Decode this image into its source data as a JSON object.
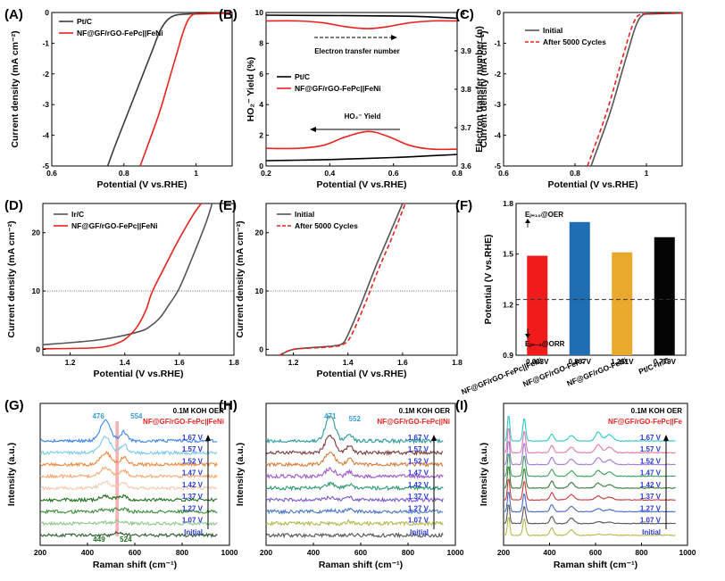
{
  "chart_data": [
    {
      "panel": "(A)",
      "type": "line",
      "xlabel": "Potential (V vs.RHE)",
      "ylabel": "Current density (mA cm⁻²)",
      "xlim": [
        0.6,
        1.1
      ],
      "ylim": [
        -5,
        0
      ],
      "xticks": [
        0.6,
        0.8,
        1.0
      ],
      "yticks": [
        -5,
        -4,
        -3,
        -2,
        -1,
        0
      ],
      "legend_pos": "top-left",
      "series": [
        {
          "name": "Pt/C",
          "color": "#3c3c3c",
          "x": [
            0.755,
            0.78,
            0.82,
            0.86,
            0.88,
            0.9,
            0.92,
            0.94,
            0.96,
            1.0,
            1.1
          ],
          "y": [
            -5.0,
            -4.2,
            -3.0,
            -1.8,
            -1.2,
            -0.6,
            -0.25,
            -0.1,
            -0.06,
            -0.04,
            0.0
          ]
        },
        {
          "name": "NF@GF/rGO-FePc||FeNi",
          "color": "#e8231e",
          "x": [
            0.845,
            0.87,
            0.9,
            0.93,
            0.95,
            0.96,
            0.97,
            0.98,
            0.99,
            1.0,
            1.1
          ],
          "y": [
            -5.0,
            -4.2,
            -3.2,
            -2.0,
            -1.2,
            -0.8,
            -0.45,
            -0.2,
            -0.08,
            -0.05,
            -0.02
          ]
        }
      ]
    },
    {
      "panel": "(B)",
      "type": "line",
      "xlabel": "Potential (V vs.RHE)",
      "ylabel": "HO₂⁻ Yield (%)",
      "y2label": "Electron transfer number (n)",
      "xlim": [
        0.2,
        0.8
      ],
      "ylim": [
        0,
        10
      ],
      "y2lim": [
        3.6,
        4.0
      ],
      "xticks": [
        0.2,
        0.4,
        0.6,
        0.8
      ],
      "yticks": [
        0,
        2,
        4,
        6,
        8,
        10
      ],
      "y2ticks": [
        3.6,
        3.7,
        3.8,
        3.9,
        4.0
      ],
      "legend_pos": "middle-left",
      "annotations": [
        "Electron transfer number",
        "HO₂⁻ Yield"
      ],
      "series": [
        {
          "name": "Pt/C",
          "axis": "left",
          "color": "#000000",
          "x": [
            0.2,
            0.3,
            0.4,
            0.5,
            0.6,
            0.7,
            0.8
          ],
          "y": [
            0.35,
            0.38,
            0.42,
            0.48,
            0.55,
            0.65,
            0.75
          ]
        },
        {
          "name": "NF@GF/rGO-FePc||FeNi",
          "axis": "left",
          "color": "#e8231e",
          "x": [
            0.2,
            0.3,
            0.38,
            0.45,
            0.52,
            0.58,
            0.65,
            0.72,
            0.8
          ],
          "y": [
            1.15,
            1.15,
            1.35,
            1.9,
            2.25,
            1.95,
            1.35,
            1.1,
            1.1
          ]
        },
        {
          "name": "Pt/C n",
          "axis": "right",
          "color": "#000000",
          "x": [
            0.2,
            0.4,
            0.6,
            0.7,
            0.8
          ],
          "y": [
            3.993,
            3.992,
            3.991,
            3.989,
            3.985
          ]
        },
        {
          "name": "NF@GF/rGO-FePc||FeNi n",
          "axis": "right",
          "color": "#e8231e",
          "x": [
            0.2,
            0.3,
            0.38,
            0.45,
            0.52,
            0.58,
            0.65,
            0.72,
            0.8
          ],
          "y": [
            3.978,
            3.978,
            3.973,
            3.963,
            3.958,
            3.963,
            3.973,
            3.978,
            3.978
          ]
        }
      ]
    },
    {
      "panel": "(C)",
      "type": "line",
      "xlabel": "Potential (V vs.RHE)",
      "ylabel": "Current density (mA cm⁻²)",
      "xlim": [
        0.6,
        1.1
      ],
      "ylim": [
        -5,
        0
      ],
      "xticks": [
        0.6,
        0.8,
        1.0
      ],
      "yticks": [
        -5,
        -4,
        -3,
        -2,
        -1,
        0
      ],
      "legend_pos": "top-right",
      "series": [
        {
          "name": "Initial",
          "color": "#555555",
          "dash": false,
          "x": [
            0.845,
            0.87,
            0.9,
            0.93,
            0.95,
            0.96,
            0.97,
            0.98,
            0.99,
            1.0,
            1.1
          ],
          "y": [
            -5.0,
            -4.2,
            -3.2,
            -2.0,
            -1.2,
            -0.8,
            -0.45,
            -0.2,
            -0.08,
            -0.05,
            -0.02
          ]
        },
        {
          "name": "After 5000 Cycles",
          "color": "#e8231e",
          "dash": true,
          "x": [
            0.835,
            0.86,
            0.89,
            0.92,
            0.94,
            0.95,
            0.96,
            0.97,
            0.98,
            1.0,
            1.1
          ],
          "y": [
            -5.0,
            -4.2,
            -3.2,
            -2.0,
            -1.2,
            -0.8,
            -0.45,
            -0.2,
            -0.08,
            -0.05,
            -0.02
          ]
        }
      ]
    },
    {
      "panel": "(D)",
      "type": "line",
      "xlabel": "Potential (V vs.RHE)",
      "ylabel": "Current density (mA cm⁻²)",
      "xlim": [
        1.1,
        1.8
      ],
      "ylim": [
        -1,
        25
      ],
      "xticks": [
        1.2,
        1.4,
        1.6,
        1.8
      ],
      "yticks": [
        0,
        10,
        20
      ],
      "refline": 10,
      "legend_pos": "top-left",
      "series": [
        {
          "name": "Ir/C",
          "color": "#555555",
          "x": [
            1.1,
            1.3,
            1.45,
            1.5,
            1.53,
            1.56,
            1.6,
            1.65,
            1.7,
            1.72
          ],
          "y": [
            0.8,
            1.6,
            3.0,
            4.2,
            5.5,
            7.5,
            10.5,
            16.0,
            22.0,
            25.0
          ]
        },
        {
          "name": "NF@GF/rGO-FePc||FeNi",
          "color": "#e8231e",
          "x": [
            1.1,
            1.3,
            1.38,
            1.42,
            1.45,
            1.48,
            1.5,
            1.55,
            1.6,
            1.65,
            1.68
          ],
          "y": [
            0.1,
            0.3,
            1.2,
            2.5,
            4.2,
            7.0,
            9.8,
            14.5,
            19.0,
            23.0,
            25.0
          ]
        }
      ]
    },
    {
      "panel": "(E)",
      "type": "line",
      "xlabel": "Potential (V vs.RHE)",
      "ylabel": "Current density (mA cm⁻²)",
      "xlim": [
        1.1,
        1.8
      ],
      "ylim": [
        -1,
        25
      ],
      "xticks": [
        1.2,
        1.4,
        1.6,
        1.8
      ],
      "yticks": [
        0,
        10,
        20
      ],
      "refline": 10,
      "legend_pos": "top-left",
      "series": [
        {
          "name": "Initial",
          "color": "#555555",
          "dash": false,
          "x": [
            1.15,
            1.2,
            1.3,
            1.35,
            1.38,
            1.4,
            1.45,
            1.5,
            1.55,
            1.6
          ],
          "y": [
            -1.0,
            0.0,
            0.4,
            0.6,
            1.0,
            2.5,
            8.0,
            14.0,
            19.5,
            25.0
          ]
        },
        {
          "name": "After 5000 Cycles",
          "color": "#e8231e",
          "dash": true,
          "x": [
            1.15,
            1.2,
            1.3,
            1.35,
            1.38,
            1.41,
            1.46,
            1.51,
            1.56,
            1.61
          ],
          "y": [
            -1.0,
            0.0,
            0.3,
            0.5,
            0.8,
            2.2,
            7.5,
            13.5,
            19.0,
            25.0
          ]
        }
      ]
    },
    {
      "panel": "(F)",
      "type": "bar",
      "ylabel": "Potential (V vs.RHE)",
      "ylim": [
        0.9,
        1.8
      ],
      "yticks": [
        0.9,
        1.2,
        1.5,
        1.8
      ],
      "refline": 1.23,
      "annotations": [
        "Eⱼ₌₁₀@OER",
        "Eⱼ₌₋₃@ORR"
      ],
      "categories": [
        "NF@GF/rGO-FePc||FeNi",
        "NF@GF/rGO-FePc",
        "NF@GF/rGO-FeNi",
        "Pt/C+Ir/C"
      ],
      "orr": [
        0.88,
        0.88,
        0.26,
        0.82
      ],
      "oer": [
        1.49,
        1.69,
        1.51,
        1.6
      ],
      "labels": [
        "0.603V",
        "0.807V",
        "1.251V",
        "0.779V"
      ],
      "colors": [
        "#f01b1b",
        "#1f6eb4",
        "#e8a92c",
        "#050505"
      ]
    },
    {
      "panel": "(G)",
      "type": "line",
      "xlabel": "Raman shift  (cm⁻¹)",
      "ylabel": "Intensity (a.u.)",
      "xlim": [
        200,
        1000
      ],
      "xticks": [
        200,
        400,
        600,
        800,
        1000
      ],
      "title": "0.1M KOH OER",
      "subtitle": "NF@GF/rGO-FePc||FeNi",
      "peaks_top": [
        476,
        554
      ],
      "peaks_bottom": [
        449,
        524
      ],
      "potentials": [
        "1.67 V",
        "1.57 V",
        "1.52 V",
        "1.47 V",
        "1.42 V",
        "1.37 V",
        "1.27 V",
        "1.07 V",
        "Initial"
      ],
      "colors": [
        "#3b86e8",
        "#7cc8f0",
        "#f0883a",
        "#f5a872",
        "#f5c8b0",
        "#1f6e1f",
        "#3c8c3c",
        "#8cc88c",
        "#2f5a2f"
      ]
    },
    {
      "panel": "(H)",
      "type": "line",
      "xlabel": "Raman shift  (cm⁻¹)",
      "ylabel": "Intensity (a.u.)",
      "xlim": [
        200,
        1000
      ],
      "xticks": [
        200,
        400,
        600,
        800,
        1000
      ],
      "title": "0.1M KOH OER",
      "subtitle": "NF@GF/rGO-FePc||Ni",
      "peaks_top": [
        471,
        552
      ],
      "potentials": [
        "1.67 V",
        "1.57 V",
        "1.52 V",
        "1.47 V",
        "1.42 V",
        "1.37 V",
        "1.27 V",
        "1.07 V",
        "Initial"
      ],
      "colors": [
        "#2a9a9a",
        "#7a3a3a",
        "#d97a3a",
        "#a05ac8",
        "#2a9a6a",
        "#7a5ac8",
        "#4a78c8",
        "#b8b84a",
        "#555555"
      ]
    },
    {
      "panel": "(I)",
      "type": "line",
      "xlabel": "Raman shift  (cm⁻¹)",
      "ylabel": "Intensity (a.u.)",
      "xlim": [
        200,
        1000
      ],
      "xticks": [
        200,
        400,
        600,
        800,
        1000
      ],
      "title": "0.1M KOH OER",
      "subtitle": "NF@GF/rGO-FePc||Fe",
      "potentials": [
        "1.67 V",
        "1.57 V",
        "1.52 V",
        "1.47 V",
        "1.42 V",
        "1.37 V",
        "1.27 V",
        "1.07 V",
        "Initial"
      ],
      "colors": [
        "#2ac8c8",
        "#e07aa8",
        "#a078d8",
        "#3aa05a",
        "#3a7a3a",
        "#c83a3a",
        "#4a6ac8",
        "#555555",
        "#b8b84a"
      ]
    }
  ]
}
